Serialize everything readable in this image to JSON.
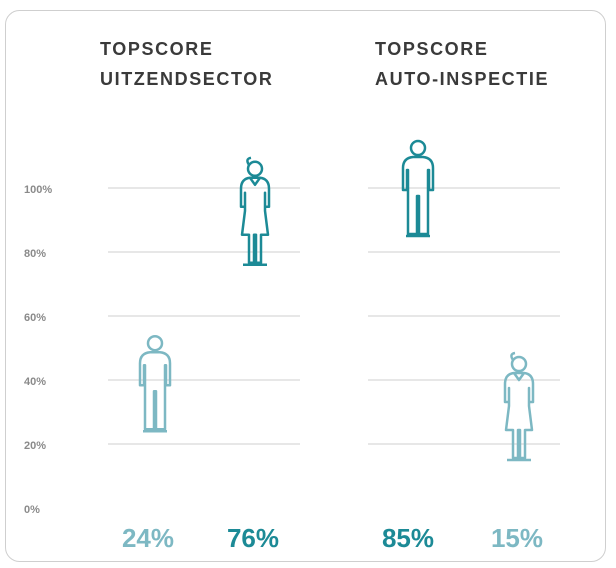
{
  "chart_data": {
    "type": "pictogram",
    "categories": [
      [
        "TOPSCORE",
        "UITZENDSECTOR"
      ],
      [
        "TOPSCORE",
        "AUTO-INSPECTIE"
      ]
    ],
    "series": [
      {
        "icon": "man",
        "values": [
          24,
          85
        ],
        "value_labels": [
          "24%",
          "85%"
        ],
        "colors": [
          "#7db8c3",
          "#1c8a96"
        ]
      },
      {
        "icon": "woman",
        "values": [
          76,
          15
        ],
        "value_labels": [
          "76%",
          "15%"
        ],
        "colors": [
          "#1c8a96",
          "#7db8c3"
        ]
      }
    ],
    "ylim": [
      0,
      100
    ],
    "yticks": [
      {
        "value": 0,
        "label": "0%"
      },
      {
        "value": 20,
        "label": "20%"
      },
      {
        "value": 40,
        "label": "40%"
      },
      {
        "value": 60,
        "label": "60%"
      },
      {
        "value": 80,
        "label": "80%"
      },
      {
        "value": 100,
        "label": "100%"
      }
    ],
    "grid": true
  }
}
